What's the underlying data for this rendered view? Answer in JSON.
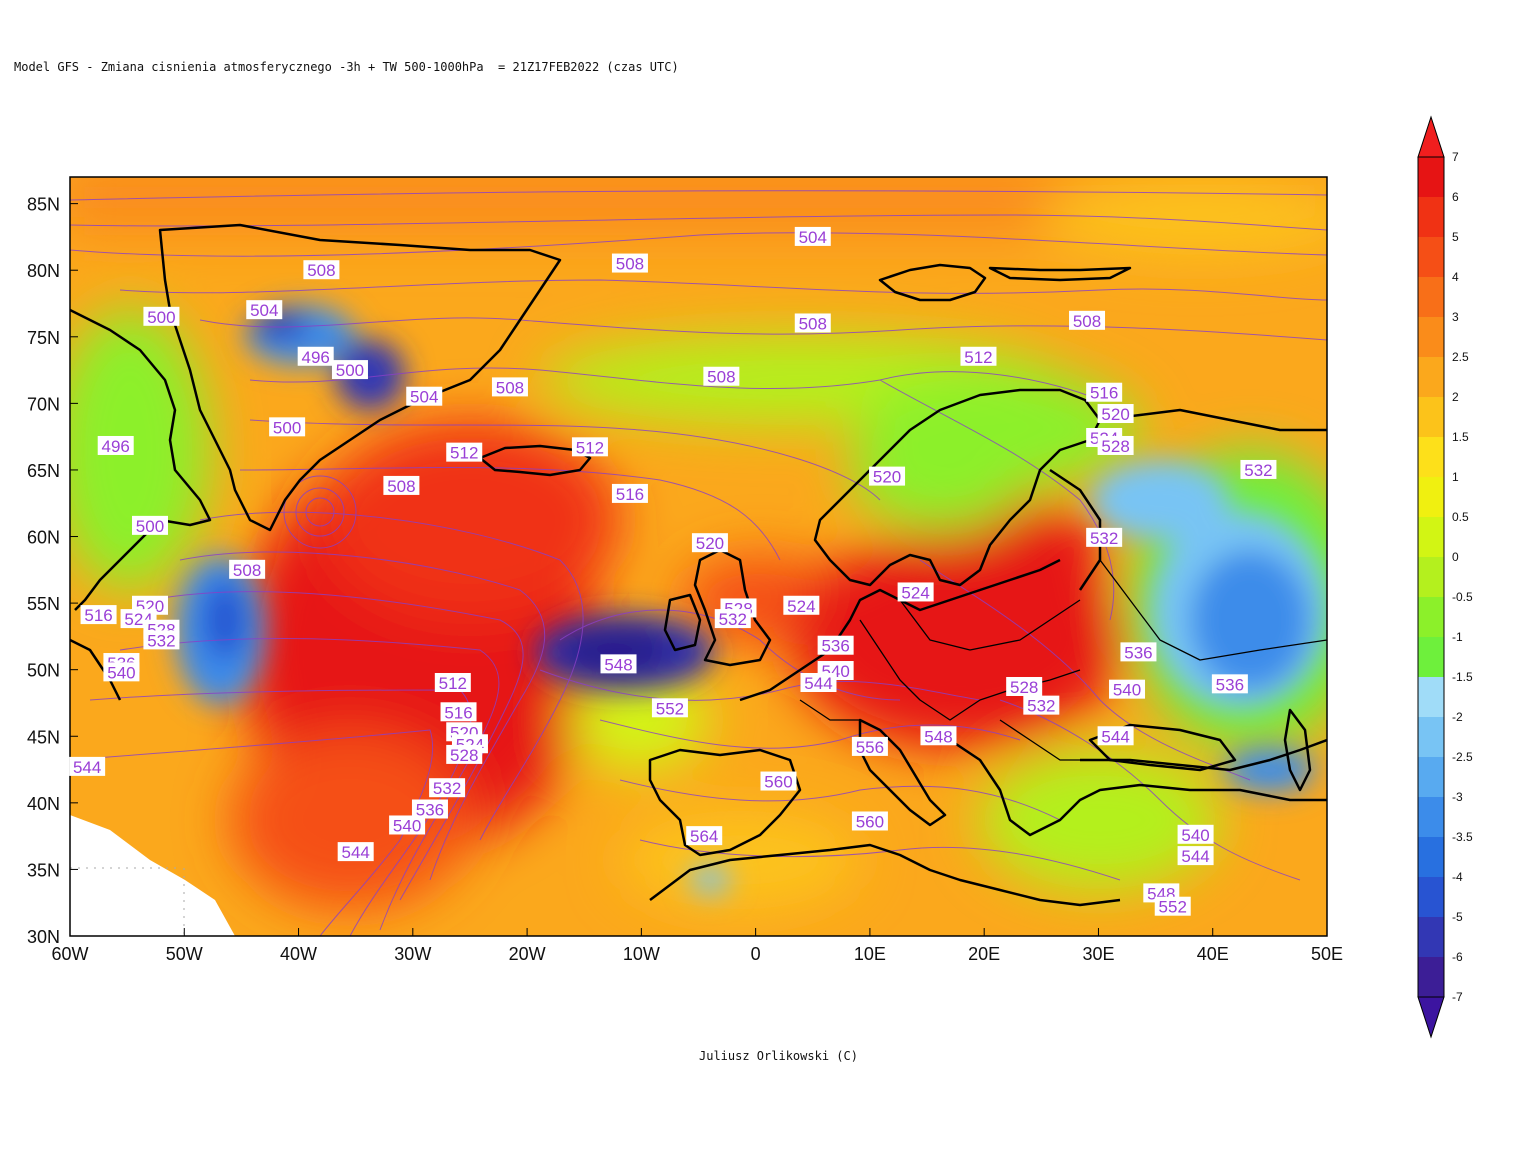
{
  "title": "Model GFS - Zmiana cisnienia atmosferycznego -3h + TW 500-1000hPa  = 21Z17FEB2022 (czas UTC)",
  "credit": "Juliusz Orlikowski (C)",
  "map": {
    "lon_range": [
      -60,
      50
    ],
    "lat_range": [
      30,
      87
    ],
    "lon_ticks": [
      {
        "value": -60,
        "label": "60W"
      },
      {
        "value": -50,
        "label": "50W"
      },
      {
        "value": -40,
        "label": "40W"
      },
      {
        "value": -30,
        "label": "30W"
      },
      {
        "value": -20,
        "label": "20W"
      },
      {
        "value": -10,
        "label": "10W"
      },
      {
        "value": 0,
        "label": "0"
      },
      {
        "value": 10,
        "label": "10E"
      },
      {
        "value": 20,
        "label": "20E"
      },
      {
        "value": 30,
        "label": "30E"
      },
      {
        "value": 40,
        "label": "40E"
      },
      {
        "value": 50,
        "label": "50E"
      }
    ],
    "lat_ticks": [
      {
        "value": 30,
        "label": "30N"
      },
      {
        "value": 35,
        "label": "35N"
      },
      {
        "value": 40,
        "label": "40N"
      },
      {
        "value": 45,
        "label": "45N"
      },
      {
        "value": 50,
        "label": "50N"
      },
      {
        "value": 55,
        "label": "55N"
      },
      {
        "value": 60,
        "label": "60N"
      },
      {
        "value": 65,
        "label": "65N"
      },
      {
        "value": 70,
        "label": "70N"
      },
      {
        "value": 75,
        "label": "75N"
      },
      {
        "value": 80,
        "label": "80N"
      },
      {
        "value": 85,
        "label": "85N"
      }
    ],
    "contour_labels": [
      {
        "lon": 5,
        "lat": 82.5,
        "text": "504"
      },
      {
        "lon": -38,
        "lat": 80,
        "text": "508"
      },
      {
        "lon": -11,
        "lat": 80.5,
        "text": "508"
      },
      {
        "lon": -52,
        "lat": 76.5,
        "text": "500"
      },
      {
        "lon": -43,
        "lat": 77,
        "text": "504"
      },
      {
        "lon": 5,
        "lat": 76,
        "text": "508"
      },
      {
        "lon": 29,
        "lat": 76.2,
        "text": "508"
      },
      {
        "lon": 19.5,
        "lat": 73.5,
        "text": "512"
      },
      {
        "lon": -38.5,
        "lat": 73.5,
        "text": "496"
      },
      {
        "lon": -35.5,
        "lat": 72.5,
        "text": "500"
      },
      {
        "lon": -29,
        "lat": 70.5,
        "text": "504"
      },
      {
        "lon": -21.5,
        "lat": 71.2,
        "text": "508"
      },
      {
        "lon": -3,
        "lat": 72,
        "text": "508"
      },
      {
        "lon": 30.5,
        "lat": 70.8,
        "text": "516"
      },
      {
        "lon": 31.5,
        "lat": 69.2,
        "text": "520"
      },
      {
        "lon": -41,
        "lat": 68.2,
        "text": "500"
      },
      {
        "lon": -56,
        "lat": 66.8,
        "text": "496"
      },
      {
        "lon": -25.5,
        "lat": 66.3,
        "text": "512"
      },
      {
        "lon": -14.5,
        "lat": 66.7,
        "text": "512"
      },
      {
        "lon": 30.5,
        "lat": 67.4,
        "text": "524"
      },
      {
        "lon": 31.5,
        "lat": 66.8,
        "text": "528"
      },
      {
        "lon": 44,
        "lat": 65,
        "text": "532"
      },
      {
        "lon": 11.5,
        "lat": 64.5,
        "text": "520"
      },
      {
        "lon": -31,
        "lat": 63.8,
        "text": "508"
      },
      {
        "lon": -11,
        "lat": 63.2,
        "text": "516"
      },
      {
        "lon": -53,
        "lat": 60.8,
        "text": "500"
      },
      {
        "lon": -4,
        "lat": 59.5,
        "text": "520"
      },
      {
        "lon": 30.5,
        "lat": 59.9,
        "text": "532"
      },
      {
        "lon": -44.5,
        "lat": 57.5,
        "text": "508"
      },
      {
        "lon": 14,
        "lat": 55.8,
        "text": "524"
      },
      {
        "lon": 4,
        "lat": 54.8,
        "text": "524"
      },
      {
        "lon": -1.5,
        "lat": 54.6,
        "text": "528"
      },
      {
        "lon": -2,
        "lat": 53.8,
        "text": "532"
      },
      {
        "lon": -57.5,
        "lat": 54.1,
        "text": "516"
      },
      {
        "lon": -53,
        "lat": 54.8,
        "text": "520"
      },
      {
        "lon": -54,
        "lat": 53.8,
        "text": "524"
      },
      {
        "lon": -52,
        "lat": 53,
        "text": "528"
      },
      {
        "lon": -52,
        "lat": 52.2,
        "text": "532"
      },
      {
        "lon": 7,
        "lat": 51.8,
        "text": "536"
      },
      {
        "lon": 33.5,
        "lat": 51.3,
        "text": "536"
      },
      {
        "lon": -55.5,
        "lat": 50.5,
        "text": "536"
      },
      {
        "lon": -55.5,
        "lat": 49.8,
        "text": "540"
      },
      {
        "lon": -12,
        "lat": 50.4,
        "text": "548"
      },
      {
        "lon": 7,
        "lat": 49.9,
        "text": "540"
      },
      {
        "lon": 5.5,
        "lat": 49,
        "text": "544"
      },
      {
        "lon": -26.5,
        "lat": 49,
        "text": "512"
      },
      {
        "lon": 32.5,
        "lat": 48.5,
        "text": "540"
      },
      {
        "lon": 41.5,
        "lat": 48.9,
        "text": "536"
      },
      {
        "lon": 23.5,
        "lat": 48.7,
        "text": "528"
      },
      {
        "lon": 25,
        "lat": 47.3,
        "text": "532"
      },
      {
        "lon": -7.5,
        "lat": 47.1,
        "text": "552"
      },
      {
        "lon": -26,
        "lat": 46.8,
        "text": "516"
      },
      {
        "lon": -25.5,
        "lat": 45.3,
        "text": "520"
      },
      {
        "lon": -25,
        "lat": 44.4,
        "text": "524"
      },
      {
        "lon": -25.5,
        "lat": 43.6,
        "text": "528"
      },
      {
        "lon": 31.5,
        "lat": 45,
        "text": "544"
      },
      {
        "lon": 16,
        "lat": 45,
        "text": "548"
      },
      {
        "lon": 10,
        "lat": 44.2,
        "text": "556"
      },
      {
        "lon": -58.5,
        "lat": 42.7,
        "text": "544"
      },
      {
        "lon": 2,
        "lat": 41.6,
        "text": "560"
      },
      {
        "lon": -27,
        "lat": 41.1,
        "text": "532"
      },
      {
        "lon": -28.5,
        "lat": 39.5,
        "text": "536"
      },
      {
        "lon": -30.5,
        "lat": 38.3,
        "text": "540"
      },
      {
        "lon": 10,
        "lat": 38.6,
        "text": "560"
      },
      {
        "lon": -4.5,
        "lat": 37.5,
        "text": "564"
      },
      {
        "lon": 38.5,
        "lat": 37.6,
        "text": "540"
      },
      {
        "lon": 38.5,
        "lat": 36,
        "text": "544"
      },
      {
        "lon": -35,
        "lat": 36.3,
        "text": "544"
      },
      {
        "lon": 35.5,
        "lat": 33.2,
        "text": "548"
      },
      {
        "lon": 36.5,
        "lat": 32.2,
        "text": "552"
      }
    ]
  },
  "colorbar": {
    "labels": [
      "7",
      "6",
      "5",
      "4",
      "3",
      "2.5",
      "2",
      "1.5",
      "1",
      "0.5",
      "0",
      "-0.5",
      "-1",
      "-1.5",
      "-2",
      "-2.5",
      "-3",
      "-3.5",
      "-4",
      "-5",
      "-6",
      "-7"
    ],
    "colors": [
      "#e61414",
      "#f03214",
      "#f54f16",
      "#f86f18",
      "#fa8c1a",
      "#fba81c",
      "#fcc31a",
      "#fde01a",
      "#f0f010",
      "#d2f514",
      "#b4f01e",
      "#8cf02a",
      "#6ef03c",
      "#a0dcf8",
      "#78c4f4",
      "#58aaf0",
      "#3c8cea",
      "#2870e0",
      "#2854d2",
      "#3237b4",
      "#3c1e96"
    ],
    "top_color": "#f01e1e",
    "bottom_color": "#3c14a0"
  }
}
